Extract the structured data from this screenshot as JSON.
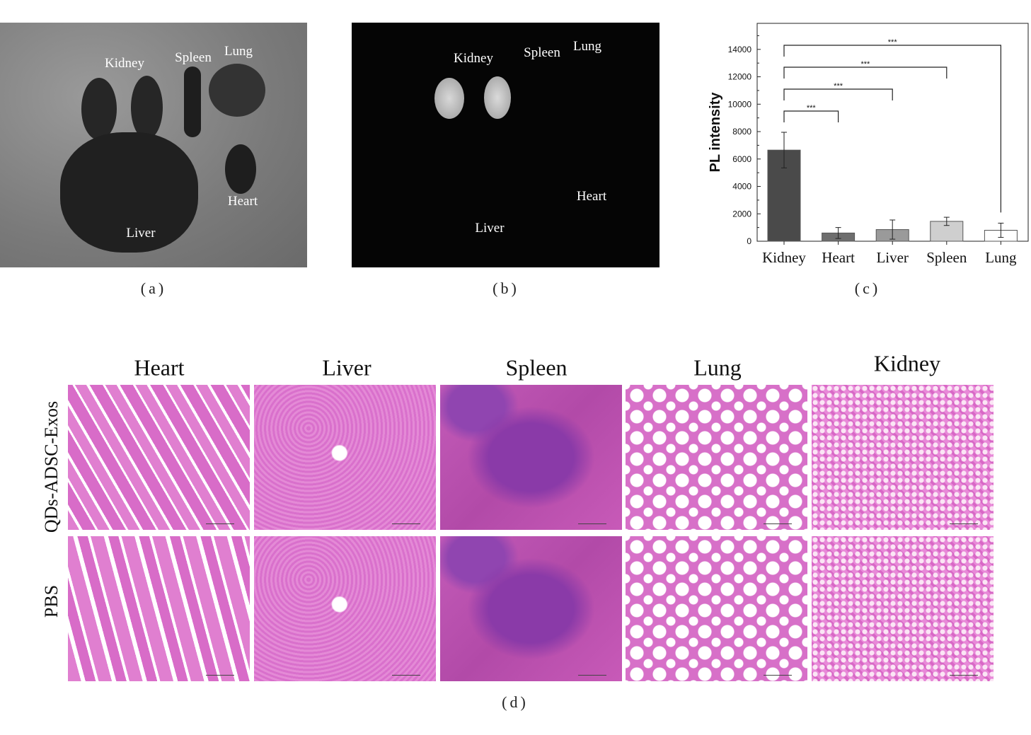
{
  "panel_a": {
    "labels": [
      "Kidney",
      "Spleen",
      "Lung",
      "Heart",
      "Liver"
    ],
    "caption": "(a)"
  },
  "panel_b": {
    "labels": [
      "Kidney",
      "Spleen",
      "Lung",
      "Heart",
      "Liver"
    ],
    "caption": "(b)"
  },
  "panel_c": {
    "caption": "(c)"
  },
  "panel_d": {
    "columns": [
      "Heart",
      "Liver",
      "Spleen",
      "Lung",
      "Kidney"
    ],
    "rows": [
      "QDs-ADSC-Exos",
      "PBS"
    ],
    "caption": "(d)"
  },
  "chart_data": {
    "type": "bar",
    "categories": [
      "Kidney",
      "Heart",
      "Liver",
      "Spleen",
      "Lung"
    ],
    "values": [
      6650,
      600,
      850,
      1450,
      800
    ],
    "errors": [
      1300,
      400,
      700,
      300,
      520
    ],
    "colors": [
      "#4a4a4a",
      "#6e6e6e",
      "#9a9a9a",
      "#cfcfcf",
      "#ffffff"
    ],
    "ylabel": "PL intensity",
    "xlabel": "",
    "ylim": [
      0,
      15900
    ],
    "yticks": [
      0,
      2000,
      4000,
      6000,
      8000,
      10000,
      12000,
      14000
    ],
    "significance": [
      {
        "from": "Kidney",
        "to": "Heart",
        "y": 9500,
        "label": "***"
      },
      {
        "from": "Kidney",
        "to": "Liver",
        "y": 11100,
        "label": "***"
      },
      {
        "from": "Kidney",
        "to": "Spleen",
        "y": 12700,
        "label": "***"
      },
      {
        "from": "Kidney",
        "to": "Lung",
        "y": 14300,
        "label": "***"
      }
    ],
    "grid": false
  }
}
